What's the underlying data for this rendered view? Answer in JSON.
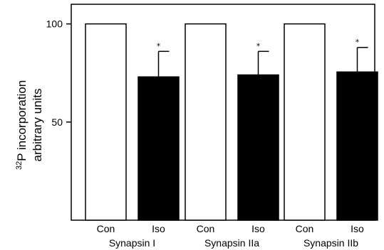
{
  "chart_data": {
    "type": "bar",
    "ylabel_prefix": "32",
    "ylabel_line1": "P incorporation",
    "ylabel_line2": "arbitrary units",
    "ylim": [
      0,
      110
    ],
    "yticks": [
      50,
      100
    ],
    "grid": false,
    "groups": [
      {
        "label": "Synapsin I",
        "bars": [
          {
            "label": "Con",
            "value": 100,
            "error": 0,
            "fill": "white",
            "significant": false
          },
          {
            "label": "Iso",
            "value": 73,
            "error": 13,
            "fill": "black",
            "significant": true
          }
        ]
      },
      {
        "label": "Synapsin IIa",
        "bars": [
          {
            "label": "Con",
            "value": 100,
            "error": 0,
            "fill": "white",
            "significant": false
          },
          {
            "label": "Iso",
            "value": 74,
            "error": 12,
            "fill": "black",
            "significant": true
          }
        ]
      },
      {
        "label": "Synapsin IIb",
        "bars": [
          {
            "label": "Con",
            "value": 100,
            "error": 0,
            "fill": "white",
            "significant": false
          },
          {
            "label": "Iso",
            "value": 75.5,
            "error": 12.5,
            "fill": "black",
            "significant": true
          }
        ]
      }
    ],
    "significance_marker": "*"
  }
}
